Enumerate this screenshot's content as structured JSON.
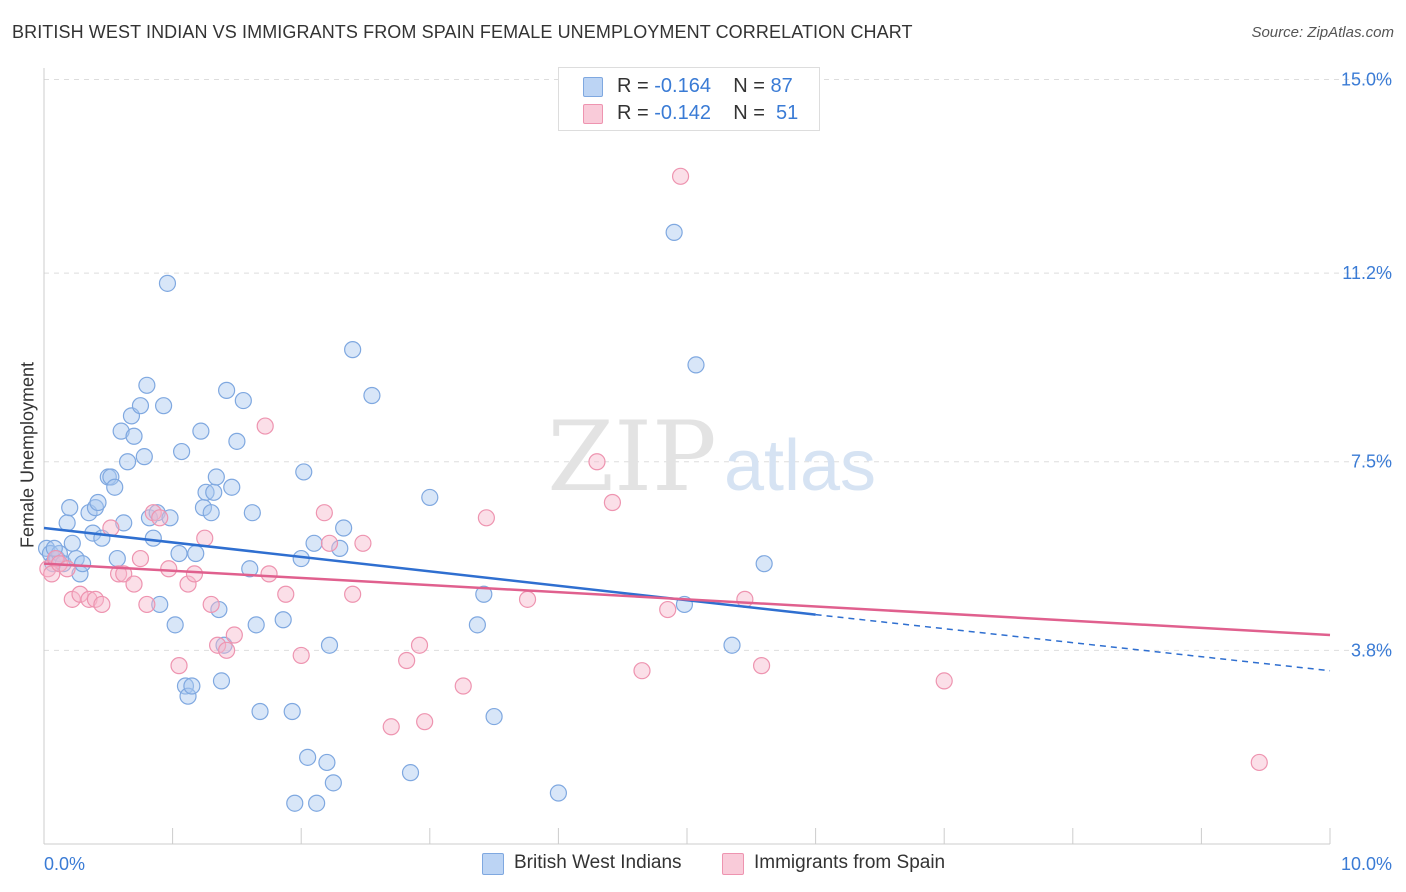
{
  "title": "BRITISH WEST INDIAN VS IMMIGRANTS FROM SPAIN FEMALE UNEMPLOYMENT CORRELATION CHART",
  "source": "Source: ZipAtlas.com",
  "watermark": {
    "zip": "ZIP",
    "atlas": "atlas"
  },
  "legend": {
    "rows": [
      {
        "r_label": "R = ",
        "r_value": "-0.164",
        "n_label": "N = ",
        "n_value": "87"
      },
      {
        "r_label": "R = ",
        "r_value": "-0.142",
        "n_label": "N = ",
        "n_value": "51"
      }
    ]
  },
  "chart_data": {
    "type": "scatter",
    "title": "BRITISH WEST INDIAN VS IMMIGRANTS FROM SPAIN FEMALE UNEMPLOYMENT CORRELATION CHART",
    "xlabel": "",
    "ylabel": "Female Unemployment",
    "xlim": [
      0,
      10
    ],
    "ylim": [
      0,
      15.5
    ],
    "x_tick_labels": [
      "0.0%",
      "10.0%"
    ],
    "y_ticks": [
      3.8,
      7.5,
      11.2,
      15.0
    ],
    "y_tick_labels": [
      "3.8%",
      "7.5%",
      "11.2%",
      "15.0%"
    ],
    "grid": true,
    "legend_position": "top-center",
    "colors": {
      "blue_fill": "#a9c8f0",
      "blue_stroke": "#7fa8e0",
      "blue_line": "#2f6fd0",
      "pink_fill": "#f6b8cb",
      "pink_stroke": "#ee94b0",
      "pink_line": "#e0608e",
      "axis_text": "#3a7bd5",
      "grid": "#dddddd"
    },
    "series": [
      {
        "name": "British West Indians",
        "trend": {
          "x0": 0,
          "y0": 6.2,
          "x1": 6.0,
          "y1": 4.5,
          "dash_to_x": 10,
          "dash_to_y": 3.4
        },
        "points": [
          [
            0.02,
            5.8
          ],
          [
            0.05,
            5.7
          ],
          [
            0.07,
            5.5
          ],
          [
            0.1,
            5.6
          ],
          [
            0.12,
            5.7
          ],
          [
            0.15,
            5.5
          ],
          [
            0.18,
            6.3
          ],
          [
            0.2,
            6.6
          ],
          [
            0.22,
            5.9
          ],
          [
            0.25,
            5.6
          ],
          [
            0.28,
            5.3
          ],
          [
            0.3,
            5.5
          ],
          [
            0.35,
            6.5
          ],
          [
            0.38,
            6.1
          ],
          [
            0.4,
            6.6
          ],
          [
            0.42,
            6.7
          ],
          [
            0.45,
            6.0
          ],
          [
            0.5,
            7.2
          ],
          [
            0.52,
            7.2
          ],
          [
            0.55,
            7.0
          ],
          [
            0.57,
            5.6
          ],
          [
            0.6,
            8.1
          ],
          [
            0.62,
            6.3
          ],
          [
            0.65,
            7.5
          ],
          [
            0.68,
            8.4
          ],
          [
            0.7,
            8.0
          ],
          [
            0.75,
            8.6
          ],
          [
            0.78,
            7.6
          ],
          [
            0.8,
            9.0
          ],
          [
            0.82,
            6.4
          ],
          [
            0.85,
            6.0
          ],
          [
            0.88,
            6.5
          ],
          [
            0.9,
            4.7
          ],
          [
            0.93,
            8.6
          ],
          [
            0.96,
            11.0
          ],
          [
            0.98,
            6.4
          ],
          [
            1.02,
            4.3
          ],
          [
            1.05,
            5.7
          ],
          [
            1.07,
            7.7
          ],
          [
            1.1,
            3.1
          ],
          [
            1.12,
            2.9
          ],
          [
            1.15,
            3.1
          ],
          [
            1.18,
            5.7
          ],
          [
            1.22,
            8.1
          ],
          [
            1.24,
            6.6
          ],
          [
            1.26,
            6.9
          ],
          [
            1.3,
            6.5
          ],
          [
            1.32,
            6.9
          ],
          [
            1.34,
            7.2
          ],
          [
            1.36,
            4.6
          ],
          [
            1.38,
            3.2
          ],
          [
            1.4,
            3.9
          ],
          [
            1.42,
            8.9
          ],
          [
            1.46,
            7.0
          ],
          [
            1.5,
            7.9
          ],
          [
            1.55,
            8.7
          ],
          [
            1.6,
            5.4
          ],
          [
            1.62,
            6.5
          ],
          [
            1.65,
            4.3
          ],
          [
            1.68,
            2.6
          ],
          [
            1.86,
            4.4
          ],
          [
            1.93,
            2.6
          ],
          [
            1.95,
            0.8
          ],
          [
            2.0,
            5.6
          ],
          [
            2.02,
            7.3
          ],
          [
            2.05,
            1.7
          ],
          [
            2.1,
            5.9
          ],
          [
            2.12,
            0.8
          ],
          [
            2.2,
            1.6
          ],
          [
            2.22,
            3.9
          ],
          [
            2.25,
            1.2
          ],
          [
            2.3,
            5.8
          ],
          [
            2.33,
            6.2
          ],
          [
            2.4,
            9.7
          ],
          [
            2.55,
            8.8
          ],
          [
            2.85,
            1.4
          ],
          [
            3.0,
            6.8
          ],
          [
            3.37,
            4.3
          ],
          [
            3.42,
            4.9
          ],
          [
            3.5,
            2.5
          ],
          [
            4.0,
            1.0
          ],
          [
            4.9,
            12.0
          ],
          [
            4.98,
            4.7
          ],
          [
            5.07,
            9.4
          ],
          [
            5.35,
            3.9
          ],
          [
            5.6,
            5.5
          ],
          [
            0.08,
            5.8
          ]
        ]
      },
      {
        "name": "Immigrants from Spain",
        "trend": {
          "x0": 0,
          "y0": 5.5,
          "x1": 10,
          "y1": 4.1
        },
        "points": [
          [
            0.03,
            5.4
          ],
          [
            0.06,
            5.3
          ],
          [
            0.09,
            5.6
          ],
          [
            0.12,
            5.5
          ],
          [
            0.18,
            5.4
          ],
          [
            0.22,
            4.8
          ],
          [
            0.28,
            4.9
          ],
          [
            0.35,
            4.8
          ],
          [
            0.4,
            4.8
          ],
          [
            0.45,
            4.7
          ],
          [
            0.52,
            6.2
          ],
          [
            0.58,
            5.3
          ],
          [
            0.62,
            5.3
          ],
          [
            0.7,
            5.1
          ],
          [
            0.75,
            5.6
          ],
          [
            0.8,
            4.7
          ],
          [
            0.85,
            6.5
          ],
          [
            0.9,
            6.4
          ],
          [
            0.97,
            5.4
          ],
          [
            1.05,
            3.5
          ],
          [
            1.12,
            5.1
          ],
          [
            1.17,
            5.3
          ],
          [
            1.25,
            6.0
          ],
          [
            1.3,
            4.7
          ],
          [
            1.35,
            3.9
          ],
          [
            1.42,
            3.8
          ],
          [
            1.48,
            4.1
          ],
          [
            1.72,
            8.2
          ],
          [
            1.75,
            5.3
          ],
          [
            1.88,
            4.9
          ],
          [
            2.0,
            3.7
          ],
          [
            2.18,
            6.5
          ],
          [
            2.22,
            5.9
          ],
          [
            2.4,
            4.9
          ],
          [
            2.48,
            5.9
          ],
          [
            2.7,
            2.3
          ],
          [
            2.82,
            3.6
          ],
          [
            2.92,
            3.9
          ],
          [
            2.96,
            2.4
          ],
          [
            3.26,
            3.1
          ],
          [
            3.44,
            6.4
          ],
          [
            3.76,
            4.8
          ],
          [
            4.3,
            7.5
          ],
          [
            4.42,
            6.7
          ],
          [
            4.65,
            3.4
          ],
          [
            4.85,
            4.6
          ],
          [
            4.95,
            13.1
          ],
          [
            5.45,
            4.8
          ],
          [
            5.58,
            3.5
          ],
          [
            7.0,
            3.2
          ],
          [
            9.45,
            1.6
          ]
        ]
      }
    ]
  },
  "bottom_legend": [
    "British West Indians",
    "Immigrants from Spain"
  ]
}
